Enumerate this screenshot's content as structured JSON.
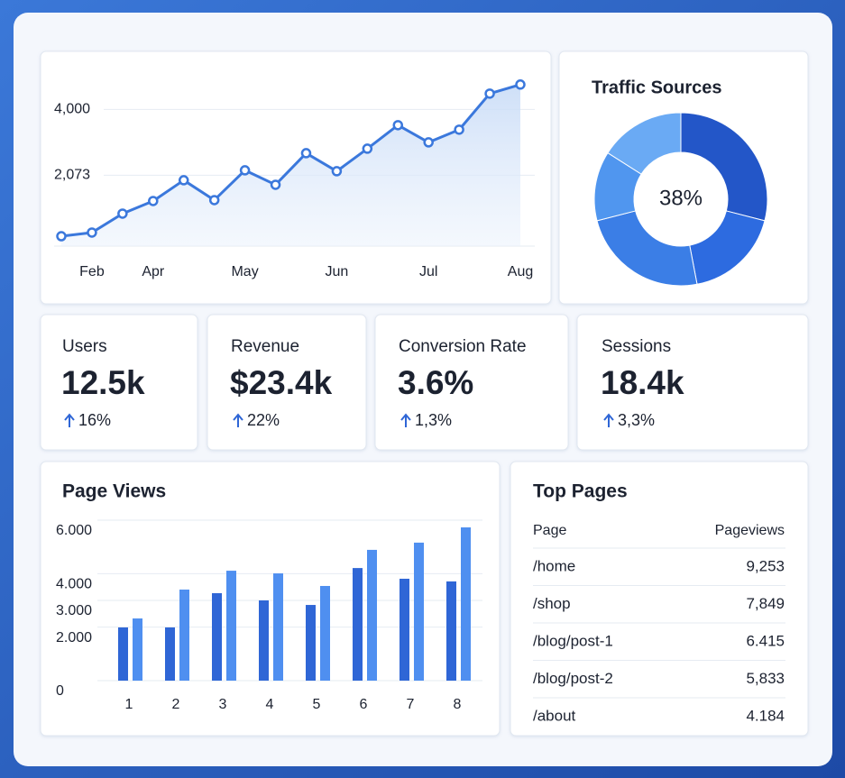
{
  "chart_data": [
    {
      "type": "line",
      "categories": [
        null,
        "Feb",
        null,
        "Apr",
        null,
        null,
        "May",
        null,
        null,
        "Jun",
        null,
        null,
        "Jul",
        null,
        null,
        "Aug"
      ],
      "series": [
        {
          "color": "#3b78dc",
          "values": [
            290,
            396,
            950,
            1320,
            1927,
            1346,
            2218,
            1795,
            2719,
            2191,
            2851,
            3538,
            3036,
            3406,
            4462,
            4726
          ]
        }
      ],
      "ylim": [
        0,
        4800
      ],
      "yticks": [
        {
          "value": 2073,
          "label": "2,073"
        },
        {
          "value": 4000,
          "label": "4,000"
        }
      ],
      "grid": true
    },
    {
      "type": "pie",
      "title": "Traffic Sources",
      "center_label": "38%",
      "values": [
        29,
        18,
        24,
        13,
        16
      ],
      "colors": [
        "#2356c8",
        "#2d6be0",
        "#3b7ee6",
        "#5096ef",
        "#6aaaf4"
      ]
    },
    {
      "type": "bar",
      "title": "Page Views",
      "categories": [
        "1",
        "2",
        "3",
        "4",
        "5",
        "6",
        "7",
        "8"
      ],
      "series": [
        {
          "color": "#2f66d6",
          "values": [
            1990,
            1990,
            3270,
            3000,
            2830,
            4210,
            3810,
            3710
          ]
        },
        {
          "color": "#4f8ff0",
          "values": [
            2325,
            3405,
            4110,
            4010,
            3540,
            4890,
            5160,
            5730
          ]
        }
      ],
      "ylim": [
        0,
        6000
      ],
      "yticks": [
        0,
        {
          "value": 2000,
          "label": "2.000"
        },
        {
          "value": 3000,
          "label": "3.000"
        },
        {
          "value": 4000,
          "label": "4.000"
        },
        {
          "value": 6000,
          "label": "6.000"
        }
      ],
      "grid": true
    }
  ],
  "kpis": [
    {
      "label": "Users",
      "value": "12.5k",
      "change": "16%"
    },
    {
      "label": "Revenue",
      "value": "$23.4k",
      "change": "22%"
    },
    {
      "label": "Conversion Rate",
      "value": "3.6%",
      "change": "1,3%"
    },
    {
      "label": "Sessions",
      "value": "18.4k",
      "change": "3,3%"
    }
  ],
  "top_pages": {
    "title": "Top Pages",
    "columns": [
      "Page",
      "Pageviews"
    ],
    "rows": [
      [
        "/home",
        "9,253"
      ],
      [
        "/shop",
        "7,849"
      ],
      [
        "/blog/post-1",
        "6.415"
      ],
      [
        "/blog/post-2",
        "5,833"
      ],
      [
        "/about",
        "4.184"
      ]
    ]
  }
}
